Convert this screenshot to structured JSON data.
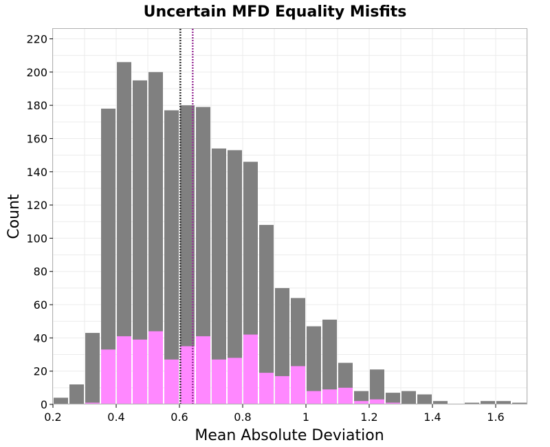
{
  "chart_data": {
    "type": "bar",
    "title": "Uncertain MFD Equality Misfits",
    "xlabel": "Mean Absolute Deviation",
    "ylabel": "Count",
    "xlim": [
      0.2,
      1.7
    ],
    "ylim": [
      0,
      226
    ],
    "bin_width": 0.05,
    "xticks": [
      "0.2",
      "0.4",
      "0.6",
      "0.8",
      "1",
      "1.2",
      "1.4",
      "1.6"
    ],
    "yticks": [
      "0",
      "20",
      "40",
      "60",
      "80",
      "100",
      "120",
      "140",
      "160",
      "180",
      "200",
      "220"
    ],
    "series": [
      {
        "color": "#808080",
        "bins": [
          {
            "x": 0.225,
            "y": 4
          },
          {
            "x": 0.275,
            "y": 12
          },
          {
            "x": 0.325,
            "y": 43
          },
          {
            "x": 0.375,
            "y": 178
          },
          {
            "x": 0.425,
            "y": 206
          },
          {
            "x": 0.475,
            "y": 195
          },
          {
            "x": 0.525,
            "y": 200
          },
          {
            "x": 0.575,
            "y": 177
          },
          {
            "x": 0.625,
            "y": 180
          },
          {
            "x": 0.675,
            "y": 179
          },
          {
            "x": 0.725,
            "y": 154
          },
          {
            "x": 0.775,
            "y": 153
          },
          {
            "x": 0.825,
            "y": 146
          },
          {
            "x": 0.875,
            "y": 108
          },
          {
            "x": 0.925,
            "y": 70
          },
          {
            "x": 0.975,
            "y": 64
          },
          {
            "x": 1.025,
            "y": 47
          },
          {
            "x": 1.075,
            "y": 51
          },
          {
            "x": 1.125,
            "y": 25
          },
          {
            "x": 1.175,
            "y": 8
          },
          {
            "x": 1.225,
            "y": 21
          },
          {
            "x": 1.275,
            "y": 7
          },
          {
            "x": 1.325,
            "y": 8
          },
          {
            "x": 1.375,
            "y": 6
          },
          {
            "x": 1.425,
            "y": 2
          },
          {
            "x": 1.525,
            "y": 1
          },
          {
            "x": 1.575,
            "y": 2
          },
          {
            "x": 1.625,
            "y": 2
          },
          {
            "x": 1.675,
            "y": 1
          }
        ]
      },
      {
        "color": "#ff88ff",
        "bins": [
          {
            "x": 0.325,
            "y": 1
          },
          {
            "x": 0.375,
            "y": 33
          },
          {
            "x": 0.425,
            "y": 41
          },
          {
            "x": 0.475,
            "y": 39
          },
          {
            "x": 0.525,
            "y": 44
          },
          {
            "x": 0.575,
            "y": 27
          },
          {
            "x": 0.625,
            "y": 35
          },
          {
            "x": 0.675,
            "y": 41
          },
          {
            "x": 0.725,
            "y": 27
          },
          {
            "x": 0.775,
            "y": 28
          },
          {
            "x": 0.825,
            "y": 42
          },
          {
            "x": 0.875,
            "y": 19
          },
          {
            "x": 0.925,
            "y": 17
          },
          {
            "x": 0.975,
            "y": 23
          },
          {
            "x": 1.025,
            "y": 8
          },
          {
            "x": 1.075,
            "y": 9
          },
          {
            "x": 1.125,
            "y": 10
          },
          {
            "x": 1.175,
            "y": 2
          },
          {
            "x": 1.225,
            "y": 3
          },
          {
            "x": 1.275,
            "y": 1
          }
        ]
      }
    ],
    "reference_lines": [
      {
        "x": 0.603,
        "color": "#333333",
        "style": "dotted"
      },
      {
        "x": 0.642,
        "color": "#993399",
        "style": "dotted"
      }
    ],
    "grid": true
  }
}
